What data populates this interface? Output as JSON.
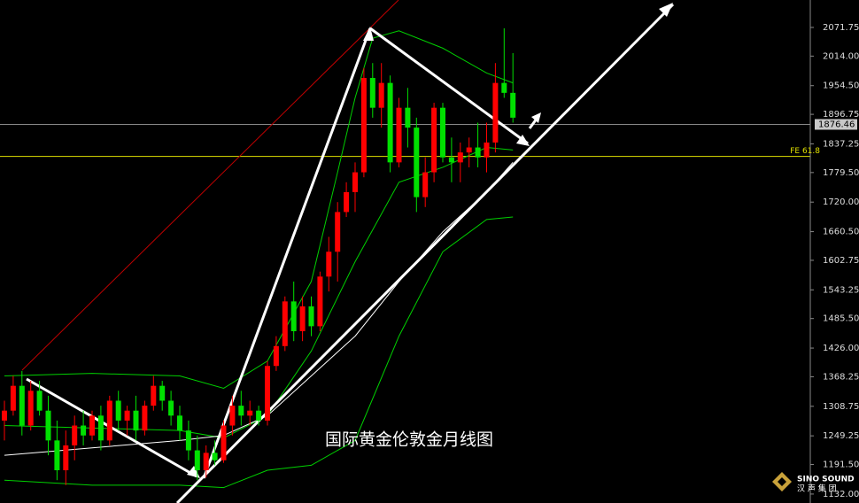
{
  "chart_data": {
    "type": "candlestick",
    "title": "国际黄金伦敦金月线图",
    "up_color": "#ff0000",
    "down_color": "#00e000",
    "open": [
      1280,
      1300,
      1350,
      1270,
      1340,
      1300,
      1240,
      1180,
      1230,
      1270,
      1250,
      1290,
      1240,
      1320,
      1280,
      1300,
      1260,
      1310,
      1350,
      1320,
      1290,
      1260,
      1220,
      1180,
      1215,
      1200,
      1270,
      1310,
      1290,
      1300,
      1280,
      1390,
      1430,
      1520,
      1460,
      1510,
      1470,
      1570,
      1620,
      1700,
      1740,
      1780,
      1970,
      1910,
      1960,
      1800,
      1910,
      1870,
      1730,
      1780,
      1910,
      1810,
      1800,
      1820,
      1830,
      1810,
      1840,
      1960,
      1940
    ],
    "high": [
      1320,
      1370,
      1380,
      1360,
      1360,
      1330,
      1280,
      1260,
      1290,
      1300,
      1300,
      1310,
      1330,
      1340,
      1310,
      1330,
      1320,
      1370,
      1360,
      1340,
      1310,
      1280,
      1250,
      1230,
      1240,
      1280,
      1330,
      1340,
      1320,
      1310,
      1400,
      1450,
      1530,
      1560,
      1530,
      1530,
      1580,
      1650,
      1720,
      1760,
      1800,
      1990,
      2000,
      2000,
      1975,
      1930,
      1950,
      1890,
      1810,
      1920,
      1920,
      1850,
      1840,
      1850,
      1880,
      1880,
      2000,
      2070,
      2020
    ],
    "low": [
      1240,
      1290,
      1250,
      1260,
      1290,
      1210,
      1160,
      1150,
      1200,
      1230,
      1240,
      1220,
      1230,
      1260,
      1250,
      1240,
      1250,
      1300,
      1300,
      1270,
      1240,
      1200,
      1160,
      1165,
      1190,
      1195,
      1250,
      1270,
      1270,
      1270,
      1270,
      1380,
      1420,
      1440,
      1440,
      1450,
      1460,
      1540,
      1560,
      1690,
      1700,
      1770,
      1890,
      1870,
      1780,
      1790,
      1830,
      1700,
      1710,
      1760,
      1800,
      1760,
      1760,
      1790,
      1790,
      1780,
      1820,
      1930,
      1880
    ],
    "close": [
      1300,
      1350,
      1270,
      1340,
      1300,
      1240,
      1180,
      1230,
      1270,
      1250,
      1290,
      1240,
      1320,
      1280,
      1300,
      1260,
      1310,
      1350,
      1320,
      1290,
      1260,
      1220,
      1180,
      1215,
      1200,
      1270,
      1310,
      1290,
      1300,
      1280,
      1390,
      1430,
      1520,
      1460,
      1510,
      1470,
      1570,
      1620,
      1700,
      1740,
      1780,
      1970,
      1910,
      1960,
      1800,
      1910,
      1870,
      1730,
      1780,
      1910,
      1810,
      1800,
      1820,
      1830,
      1810,
      1840,
      1960,
      1940,
      1890
    ],
    "bands": [
      {
        "color": "#00d000",
        "x": [
          0,
          10,
          20,
          25,
          30,
          35,
          38,
          40,
          42,
          45,
          50,
          55,
          58
        ],
        "values": [
          1370,
          1375,
          1370,
          1345,
          1400,
          1560,
          1780,
          1930,
          2050,
          2065,
          2030,
          1980,
          1960
        ]
      },
      {
        "color": "#00d000",
        "x": [
          0,
          10,
          20,
          25,
          30,
          35,
          40,
          45,
          50,
          55,
          58
        ],
        "values": [
          1270,
          1265,
          1260,
          1245,
          1290,
          1420,
          1600,
          1760,
          1790,
          1830,
          1825
        ]
      },
      {
        "color": "#00d000",
        "x": [
          0,
          10,
          20,
          25,
          30,
          35,
          40,
          45,
          50,
          55,
          58
        ],
        "values": [
          1160,
          1150,
          1150,
          1145,
          1180,
          1190,
          1240,
          1450,
          1620,
          1685,
          1690
        ]
      },
      {
        "color": "#ffffff",
        "x": [
          0,
          10,
          20,
          25,
          30,
          35,
          40,
          45,
          50,
          55,
          58
        ],
        "values": [
          1210,
          1225,
          1240,
          1250,
          1290,
          1370,
          1450,
          1560,
          1660,
          1740,
          1800
        ]
      }
    ],
    "ylim": [
      1114,
      2127
    ],
    "yticks": [
      2071.75,
      {
        "value": 2014.0,
        "label": "2014.00"
      },
      {
        "value": 1954.5,
        "label": "1954.50"
      },
      1896.75,
      1837.25,
      {
        "value": 1779.5,
        "label": "1779.50"
      },
      {
        "value": 1720,
        "label": "1720.00"
      },
      {
        "value": 1660.5,
        "label": "1660.50"
      },
      1602.75,
      1543.25,
      {
        "value": 1485.5,
        "label": "1485.50"
      },
      {
        "value": 1426,
        "label": "1426.00"
      },
      1368.25,
      1308.75,
      1249.25,
      {
        "value": 1191.5,
        "label": "1191.50"
      },
      {
        "value": 1132,
        "label": "1132.00"
      }
    ],
    "current_price": 1876.46,
    "fe_line": {
      "price": 1812,
      "label": "FE 61.8"
    },
    "logo": {
      "name": "SINO SOUND",
      "subtitle": "汉 声 集 团"
    }
  }
}
